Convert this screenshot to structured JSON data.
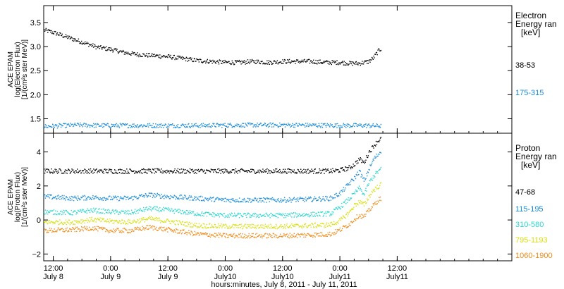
{
  "x_axis": {
    "label": "hours:minutes,  July  8, 2011 - July 11, 2011",
    "range_hours": [
      -2,
      96
    ],
    "ticks": [
      {
        "hours": 0,
        "time": "12:00",
        "date": "July 8"
      },
      {
        "hours": 12,
        "time": "0:00",
        "date": "July 9"
      },
      {
        "hours": 24,
        "time": "12:00",
        "date": "July 9"
      },
      {
        "hours": 36,
        "time": "0:00",
        "date": "July10"
      },
      {
        "hours": 48,
        "time": "12:00",
        "date": "July10"
      },
      {
        "hours": 60,
        "time": "0:00",
        "date": "July11"
      },
      {
        "hours": 72,
        "time": "12:00",
        "date": "July11"
      }
    ]
  },
  "chart_data": [
    {
      "type": "scatter",
      "ylabel_lines": [
        "ACE EPAM",
        "log(Electron Flux)",
        "[1/(cm²s ster MeV)]"
      ],
      "ylim": [
        1.2,
        3.85
      ],
      "yticks": [
        1.5,
        2.0,
        2.5,
        3.0,
        3.5
      ],
      "ytick_labels": [
        "1.5",
        "2.0",
        "2.5",
        "3.0",
        "3.5"
      ],
      "legend_title": [
        "Electron",
        "Energy ran",
        "[keV]"
      ],
      "series": [
        {
          "name": "38-53",
          "color": "#000000",
          "points": [
            [
              -2,
              3.35
            ],
            [
              0,
              3.3
            ],
            [
              3,
              3.2
            ],
            [
              6,
              3.1
            ],
            [
              9,
              3.0
            ],
            [
              12,
              2.95
            ],
            [
              15,
              2.88
            ],
            [
              18,
              2.84
            ],
            [
              21,
              2.82
            ],
            [
              24,
              2.8
            ],
            [
              27,
              2.76
            ],
            [
              30,
              2.72
            ],
            [
              33,
              2.7
            ],
            [
              36,
              2.68
            ],
            [
              39,
              2.68
            ],
            [
              42,
              2.7
            ],
            [
              45,
              2.68
            ],
            [
              48,
              2.7
            ],
            [
              51,
              2.7
            ],
            [
              54,
              2.7
            ],
            [
              57,
              2.68
            ],
            [
              60,
              2.68
            ],
            [
              62,
              2.66
            ],
            [
              64,
              2.66
            ],
            [
              66,
              2.7
            ],
            [
              67,
              2.78
            ],
            [
              68,
              2.92
            ],
            [
              68.5,
              2.96
            ]
          ]
        },
        {
          "name": "175-315",
          "color": "#1a8cd8",
          "points": [
            [
              -2,
              1.35
            ],
            [
              5,
              1.38
            ],
            [
              10,
              1.37
            ],
            [
              20,
              1.37
            ],
            [
              30,
              1.37
            ],
            [
              40,
              1.38
            ],
            [
              50,
              1.38
            ],
            [
              60,
              1.37
            ],
            [
              65,
              1.37
            ],
            [
              68.5,
              1.36
            ]
          ]
        }
      ]
    },
    {
      "type": "scatter",
      "ylabel_lines": [
        "ACE EPAM",
        "log(Proton Flux)",
        "[1/(cm²s ster MeV)]"
      ],
      "ylim": [
        -2.4,
        5.1
      ],
      "yticks": [
        -2,
        0,
        2,
        4
      ],
      "ytick_labels": [
        "−2",
        "0",
        "2",
        "4"
      ],
      "legend_title": [
        "Proton",
        "Energy ran",
        "[keV]"
      ],
      "series": [
        {
          "name": "47-68",
          "color": "#000000",
          "points": [
            [
              -2,
              2.9
            ],
            [
              10,
              2.9
            ],
            [
              20,
              2.9
            ],
            [
              30,
              2.9
            ],
            [
              40,
              2.9
            ],
            [
              50,
              2.9
            ],
            [
              58,
              2.9
            ],
            [
              60,
              2.95
            ],
            [
              62,
              3.1
            ],
            [
              63,
              3.3
            ],
            [
              64,
              3.6
            ],
            [
              65,
              3.4
            ],
            [
              66,
              4.0
            ],
            [
              67,
              4.4
            ],
            [
              68,
              4.7
            ],
            [
              68.5,
              4.8
            ]
          ]
        },
        {
          "name": "115-195",
          "color": "#1a8cd8",
          "points": [
            [
              -2,
              1.4
            ],
            [
              4,
              1.3
            ],
            [
              8,
              1.35
            ],
            [
              12,
              1.3
            ],
            [
              16,
              1.3
            ],
            [
              20,
              1.5
            ],
            [
              24,
              1.4
            ],
            [
              30,
              1.3
            ],
            [
              36,
              1.2
            ],
            [
              42,
              1.2
            ],
            [
              48,
              1.2
            ],
            [
              54,
              1.25
            ],
            [
              58,
              1.3
            ],
            [
              60,
              1.6
            ],
            [
              62,
              2.2
            ],
            [
              63,
              2.5
            ],
            [
              64,
              2.9
            ],
            [
              65,
              2.3
            ],
            [
              66,
              3.0
            ],
            [
              67,
              3.6
            ],
            [
              68,
              3.9
            ],
            [
              68.5,
              4.1
            ]
          ]
        },
        {
          "name": "310-580",
          "color": "#2cd6cf",
          "points": [
            [
              -2,
              0.5
            ],
            [
              4,
              0.45
            ],
            [
              8,
              0.6
            ],
            [
              12,
              0.5
            ],
            [
              16,
              0.45
            ],
            [
              20,
              0.7
            ],
            [
              24,
              0.6
            ],
            [
              30,
              0.4
            ],
            [
              36,
              0.3
            ],
            [
              42,
              0.3
            ],
            [
              48,
              0.3
            ],
            [
              54,
              0.35
            ],
            [
              58,
              0.4
            ],
            [
              60,
              0.8
            ],
            [
              62,
              1.3
            ],
            [
              63,
              1.6
            ],
            [
              64,
              1.9
            ],
            [
              65,
              1.5
            ],
            [
              66,
              2.2
            ],
            [
              67,
              2.6
            ],
            [
              68,
              2.9
            ],
            [
              68.5,
              3.0
            ]
          ]
        },
        {
          "name": "795-1193",
          "color": "#d8e012",
          "points": [
            [
              -2,
              -0.1
            ],
            [
              4,
              -0.1
            ],
            [
              8,
              0.05
            ],
            [
              12,
              -0.05
            ],
            [
              16,
              -0.1
            ],
            [
              20,
              0.1
            ],
            [
              24,
              -0.05
            ],
            [
              30,
              -0.3
            ],
            [
              36,
              -0.35
            ],
            [
              42,
              -0.35
            ],
            [
              48,
              -0.35
            ],
            [
              54,
              -0.3
            ],
            [
              58,
              -0.25
            ],
            [
              60,
              0.0
            ],
            [
              62,
              0.5
            ],
            [
              63,
              0.9
            ],
            [
              64,
              1.1
            ],
            [
              65,
              0.9
            ],
            [
              66,
              1.4
            ],
            [
              67,
              1.8
            ],
            [
              68,
              2.0
            ],
            [
              68.5,
              2.1
            ]
          ]
        },
        {
          "name": "1060-1900",
          "color": "#f08c1a",
          "points": [
            [
              -2,
              -0.6
            ],
            [
              4,
              -0.55
            ],
            [
              8,
              -0.45
            ],
            [
              12,
              -0.6
            ],
            [
              16,
              -0.6
            ],
            [
              20,
              -0.4
            ],
            [
              24,
              -0.55
            ],
            [
              30,
              -0.8
            ],
            [
              36,
              -0.9
            ],
            [
              42,
              -0.9
            ],
            [
              48,
              -0.9
            ],
            [
              54,
              -0.85
            ],
            [
              58,
              -0.8
            ],
            [
              60,
              -0.55
            ],
            [
              62,
              -0.2
            ],
            [
              63,
              0.1
            ],
            [
              64,
              0.3
            ],
            [
              65,
              0.2
            ],
            [
              66,
              0.6
            ],
            [
              67,
              0.9
            ],
            [
              68,
              1.2
            ],
            [
              68.5,
              1.3
            ]
          ]
        }
      ]
    }
  ]
}
